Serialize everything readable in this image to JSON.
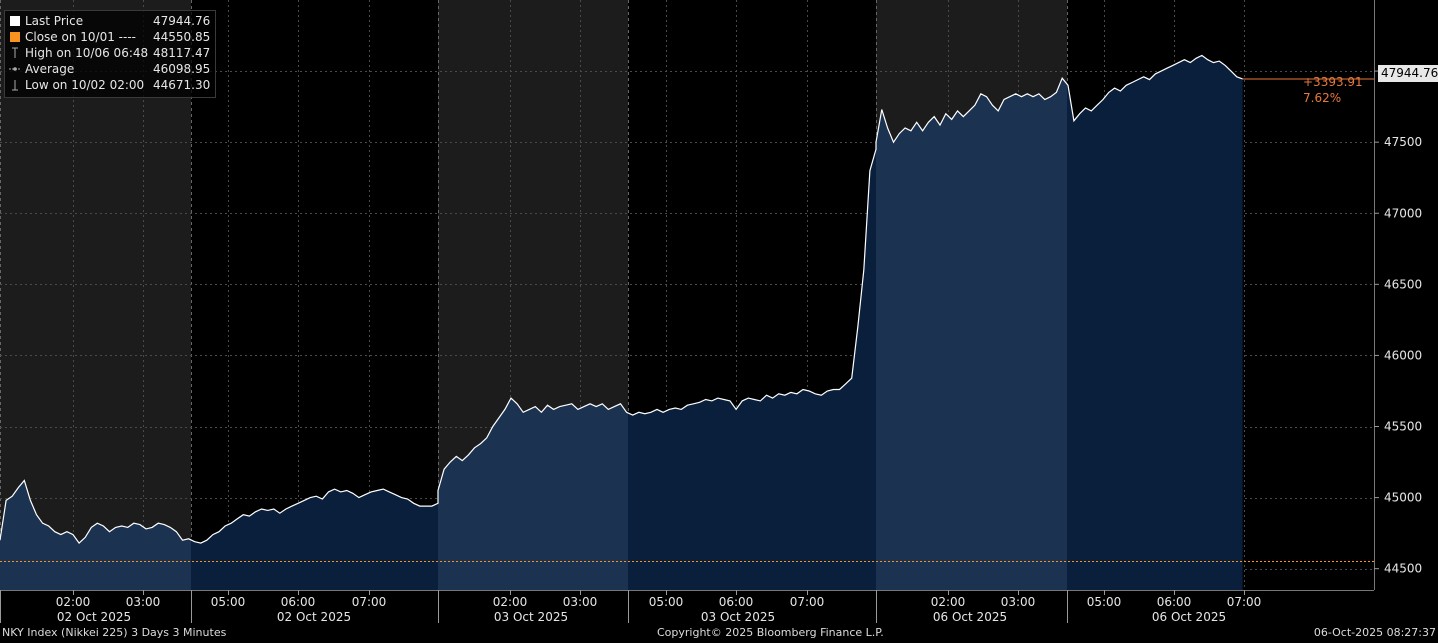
{
  "legend": {
    "rows": [
      {
        "label": "Last Price",
        "value": "47944.76",
        "color": "#ffffff"
      },
      {
        "label": "Close on 10/01 ----",
        "value": "44550.85",
        "color": "#f7931e"
      },
      {
        "label": "High on 10/06 06:48",
        "value": "48117.47"
      },
      {
        "label": "Average",
        "value": "46098.95"
      },
      {
        "label": "Low on 10/02 02:00",
        "value": "44671.30"
      }
    ]
  },
  "last_badge": "47944.76",
  "change": {
    "abs": "+3393.91",
    "pct": "7.62%"
  },
  "footer": {
    "left": "NKY Index (Nikkei 225) 3 Days 3 Minutes",
    "center": "Copyright© 2025 Bloomberg Finance L.P.",
    "right": "06-Oct-2025 08:27:37"
  },
  "colors": {
    "line": "#ffffff",
    "area_off": "#1b3250",
    "area_on": "#0a1f3b",
    "shade": "#1c1c1c",
    "close_line": "#f7931e",
    "grid": "#4a4a4a",
    "accent": "#e8793a"
  },
  "chart_data": {
    "type": "area",
    "title": "",
    "y_ticks": [
      44500,
      45000,
      45500,
      46000,
      46500,
      47000,
      47500,
      48000
    ],
    "ylim": [
      44350,
      48500
    ],
    "reference_line": {
      "label": "Close on 10/01",
      "value": 44550.85
    },
    "days": [
      {
        "name": "02 Oct 2025",
        "time_ticks": [
          "02:00",
          "03:00",
          "05:00",
          "06:00",
          "07:00"
        ],
        "session_labels": [
          "02 Oct 2025",
          "02 Oct 2025"
        ]
      },
      {
        "name": "03 Oct 2025",
        "time_ticks": [
          "02:00",
          "03:00",
          "05:00",
          "06:00",
          "07:00"
        ],
        "session_labels": [
          "03 Oct 2025",
          "03 Oct 2025"
        ]
      },
      {
        "name": "06 Oct 2025",
        "time_ticks": [
          "02:00",
          "03:00",
          "05:00",
          "06:00",
          "07:00"
        ],
        "session_labels": [
          "06 Oct 2025",
          "06 Oct 2025"
        ]
      }
    ],
    "series": [
      {
        "name": "Last Price",
        "points": [
          [
            "02 Oct 00:00",
            44700
          ],
          [
            "02 Oct 00:06",
            44980
          ],
          [
            "02 Oct 00:12",
            45010
          ],
          [
            "02 Oct 00:18",
            45070
          ],
          [
            "02 Oct 00:24",
            45120
          ],
          [
            "02 Oct 00:30",
            44980
          ],
          [
            "02 Oct 00:36",
            44880
          ],
          [
            "02 Oct 00:42",
            44820
          ],
          [
            "02 Oct 00:48",
            44800
          ],
          [
            "02 Oct 00:54",
            44760
          ],
          [
            "02 Oct 01:00",
            44740
          ],
          [
            "02 Oct 01:06",
            44760
          ],
          [
            "02 Oct 01:12",
            44740
          ],
          [
            "02 Oct 01:18",
            44680
          ],
          [
            "02 Oct 01:24",
            44720
          ],
          [
            "02 Oct 01:30",
            44790
          ],
          [
            "02 Oct 01:36",
            44820
          ],
          [
            "02 Oct 01:42",
            44800
          ],
          [
            "02 Oct 01:48",
            44760
          ],
          [
            "02 Oct 01:54",
            44790
          ],
          [
            "02 Oct 02:00",
            44800
          ],
          [
            "02 Oct 02:06",
            44790
          ],
          [
            "02 Oct 02:12",
            44820
          ],
          [
            "02 Oct 02:18",
            44810
          ],
          [
            "02 Oct 02:24",
            44780
          ],
          [
            "02 Oct 02:30",
            44790
          ],
          [
            "02 Oct 02:36",
            44820
          ],
          [
            "02 Oct 02:42",
            44810
          ],
          [
            "02 Oct 02:48",
            44790
          ],
          [
            "02 Oct 02:54",
            44760
          ],
          [
            "02 Oct 03:00",
            44700
          ],
          [
            "02 Oct 03:06",
            44710
          ],
          [
            "02 Oct 03:12",
            44690
          ],
          [
            "02 Oct 03:18",
            44680
          ],
          [
            "02 Oct 03:24",
            44700
          ],
          [
            "02 Oct 03:30",
            44740
          ],
          [
            "02 Oct 03:36",
            44760
          ],
          [
            "02 Oct 03:42",
            44800
          ],
          [
            "02 Oct 03:48",
            44820
          ],
          [
            "02 Oct 03:54",
            44850
          ],
          [
            "02 Oct 04:00",
            44880
          ],
          [
            "02 Oct 04:06",
            44870
          ],
          [
            "02 Oct 04:12",
            44900
          ],
          [
            "02 Oct 04:18",
            44920
          ],
          [
            "02 Oct 04:24",
            44910
          ],
          [
            "02 Oct 04:30",
            44920
          ],
          [
            "02 Oct 04:36",
            44890
          ],
          [
            "02 Oct 04:42",
            44920
          ],
          [
            "02 Oct 04:48",
            44940
          ],
          [
            "02 Oct 04:54",
            44960
          ],
          [
            "02 Oct 05:00",
            44980
          ],
          [
            "02 Oct 05:06",
            45000
          ],
          [
            "02 Oct 05:12",
            45010
          ],
          [
            "02 Oct 05:18",
            44990
          ],
          [
            "02 Oct 05:24",
            45040
          ],
          [
            "02 Oct 05:30",
            45060
          ],
          [
            "02 Oct 05:36",
            45040
          ],
          [
            "02 Oct 05:42",
            45050
          ],
          [
            "02 Oct 05:48",
            45030
          ],
          [
            "02 Oct 05:54",
            45000
          ],
          [
            "02 Oct 06:00",
            45020
          ],
          [
            "02 Oct 06:06",
            45040
          ],
          [
            "02 Oct 06:12",
            45050
          ],
          [
            "02 Oct 06:18",
            45060
          ],
          [
            "02 Oct 06:24",
            45040
          ],
          [
            "02 Oct 06:30",
            45020
          ],
          [
            "02 Oct 06:36",
            45000
          ],
          [
            "02 Oct 06:42",
            44990
          ],
          [
            "02 Oct 06:48",
            44960
          ],
          [
            "02 Oct 06:54",
            44940
          ],
          [
            "02 Oct 07:00",
            44940
          ],
          [
            "02 Oct 07:06",
            44940
          ],
          [
            "02 Oct 07:12",
            44960
          ],
          [
            "03 Oct 00:00",
            45050
          ],
          [
            "03 Oct 00:06",
            45200
          ],
          [
            "03 Oct 00:12",
            45250
          ],
          [
            "03 Oct 00:18",
            45290
          ],
          [
            "03 Oct 00:24",
            45260
          ],
          [
            "03 Oct 00:30",
            45300
          ],
          [
            "03 Oct 00:36",
            45350
          ],
          [
            "03 Oct 00:42",
            45380
          ],
          [
            "03 Oct 00:48",
            45420
          ],
          [
            "03 Oct 00:54",
            45500
          ],
          [
            "03 Oct 01:00",
            45560
          ],
          [
            "03 Oct 01:06",
            45620
          ],
          [
            "03 Oct 01:12",
            45700
          ],
          [
            "03 Oct 01:18",
            45660
          ],
          [
            "03 Oct 01:24",
            45600
          ],
          [
            "03 Oct 01:30",
            45620
          ],
          [
            "03 Oct 01:36",
            45640
          ],
          [
            "03 Oct 01:42",
            45600
          ],
          [
            "03 Oct 01:48",
            45650
          ],
          [
            "03 Oct 01:54",
            45620
          ],
          [
            "03 Oct 02:00",
            45640
          ],
          [
            "03 Oct 02:06",
            45650
          ],
          [
            "03 Oct 02:12",
            45660
          ],
          [
            "03 Oct 02:18",
            45620
          ],
          [
            "03 Oct 02:24",
            45640
          ],
          [
            "03 Oct 02:30",
            45660
          ],
          [
            "03 Oct 02:36",
            45640
          ],
          [
            "03 Oct 02:42",
            45660
          ],
          [
            "03 Oct 02:48",
            45620
          ],
          [
            "03 Oct 02:54",
            45640
          ],
          [
            "03 Oct 03:00",
            45660
          ],
          [
            "03 Oct 03:06",
            45600
          ],
          [
            "03 Oct 03:12",
            45580
          ],
          [
            "03 Oct 03:18",
            45600
          ],
          [
            "03 Oct 03:24",
            45590
          ],
          [
            "03 Oct 03:30",
            45600
          ],
          [
            "03 Oct 03:36",
            45620
          ],
          [
            "03 Oct 03:42",
            45600
          ],
          [
            "03 Oct 03:48",
            45620
          ],
          [
            "03 Oct 03:54",
            45630
          ],
          [
            "03 Oct 04:00",
            45620
          ],
          [
            "03 Oct 04:06",
            45650
          ],
          [
            "03 Oct 04:12",
            45660
          ],
          [
            "03 Oct 04:18",
            45670
          ],
          [
            "03 Oct 04:24",
            45690
          ],
          [
            "03 Oct 04:30",
            45680
          ],
          [
            "03 Oct 04:36",
            45700
          ],
          [
            "03 Oct 04:42",
            45690
          ],
          [
            "03 Oct 04:48",
            45680
          ],
          [
            "03 Oct 04:54",
            45620
          ],
          [
            "03 Oct 05:00",
            45680
          ],
          [
            "03 Oct 05:06",
            45700
          ],
          [
            "03 Oct 05:12",
            45690
          ],
          [
            "03 Oct 05:18",
            45680
          ],
          [
            "03 Oct 05:24",
            45720
          ],
          [
            "03 Oct 05:30",
            45700
          ],
          [
            "03 Oct 05:36",
            45730
          ],
          [
            "03 Oct 05:42",
            45720
          ],
          [
            "03 Oct 05:48",
            45740
          ],
          [
            "03 Oct 05:54",
            45730
          ],
          [
            "03 Oct 06:00",
            45760
          ],
          [
            "03 Oct 06:06",
            45750
          ],
          [
            "03 Oct 06:12",
            45730
          ],
          [
            "03 Oct 06:18",
            45720
          ],
          [
            "03 Oct 06:24",
            45750
          ],
          [
            "03 Oct 06:30",
            45760
          ],
          [
            "03 Oct 06:36",
            45760
          ],
          [
            "03 Oct 06:42",
            45800
          ],
          [
            "03 Oct 06:48",
            45840
          ],
          [
            "03 Oct 06:54",
            46200
          ],
          [
            "03 Oct 07:00",
            46600
          ],
          [
            "03 Oct 07:06",
            47300
          ],
          [
            "03 Oct 07:12",
            47450
          ],
          [
            "06 Oct 00:00",
            47500
          ],
          [
            "06 Oct 00:06",
            47730
          ],
          [
            "06 Oct 00:12",
            47600
          ],
          [
            "06 Oct 00:18",
            47500
          ],
          [
            "06 Oct 00:24",
            47560
          ],
          [
            "06 Oct 00:30",
            47600
          ],
          [
            "06 Oct 00:36",
            47580
          ],
          [
            "06 Oct 00:42",
            47640
          ],
          [
            "06 Oct 00:48",
            47580
          ],
          [
            "06 Oct 00:54",
            47640
          ],
          [
            "06 Oct 01:00",
            47680
          ],
          [
            "06 Oct 01:06",
            47620
          ],
          [
            "06 Oct 01:12",
            47700
          ],
          [
            "06 Oct 01:18",
            47660
          ],
          [
            "06 Oct 01:24",
            47720
          ],
          [
            "06 Oct 01:30",
            47680
          ],
          [
            "06 Oct 01:36",
            47720
          ],
          [
            "06 Oct 01:42",
            47760
          ],
          [
            "06 Oct 01:48",
            47840
          ],
          [
            "06 Oct 01:54",
            47820
          ],
          [
            "06 Oct 02:00",
            47760
          ],
          [
            "06 Oct 02:06",
            47720
          ],
          [
            "06 Oct 02:12",
            47800
          ],
          [
            "06 Oct 02:18",
            47820
          ],
          [
            "06 Oct 02:24",
            47840
          ],
          [
            "06 Oct 02:30",
            47820
          ],
          [
            "06 Oct 02:36",
            47840
          ],
          [
            "06 Oct 02:42",
            47820
          ],
          [
            "06 Oct 02:48",
            47840
          ],
          [
            "06 Oct 02:54",
            47800
          ],
          [
            "06 Oct 03:00",
            47820
          ],
          [
            "06 Oct 03:06",
            47850
          ],
          [
            "06 Oct 03:12",
            47950
          ],
          [
            "06 Oct 03:18",
            47900
          ],
          [
            "06 Oct 03:24",
            47650
          ],
          [
            "06 Oct 03:30",
            47700
          ],
          [
            "06 Oct 03:36",
            47740
          ],
          [
            "06 Oct 03:42",
            47720
          ],
          [
            "06 Oct 03:48",
            47760
          ],
          [
            "06 Oct 03:54",
            47800
          ],
          [
            "06 Oct 04:00",
            47850
          ],
          [
            "06 Oct 04:06",
            47880
          ],
          [
            "06 Oct 04:12",
            47860
          ],
          [
            "06 Oct 04:18",
            47900
          ],
          [
            "06 Oct 04:24",
            47920
          ],
          [
            "06 Oct 04:30",
            47940
          ],
          [
            "06 Oct 04:36",
            47960
          ],
          [
            "06 Oct 04:42",
            47940
          ],
          [
            "06 Oct 04:48",
            47980
          ],
          [
            "06 Oct 04:54",
            48000
          ],
          [
            "06 Oct 05:00",
            48020
          ],
          [
            "06 Oct 05:06",
            48040
          ],
          [
            "06 Oct 05:12",
            48060
          ],
          [
            "06 Oct 05:18",
            48080
          ],
          [
            "06 Oct 05:24",
            48060
          ],
          [
            "06 Oct 05:30",
            48090
          ],
          [
            "06 Oct 05:36",
            48110
          ],
          [
            "06 Oct 05:42",
            48080
          ],
          [
            "06 Oct 05:48",
            48060
          ],
          [
            "06 Oct 05:54",
            48070
          ],
          [
            "06 Oct 06:00",
            48040
          ],
          [
            "06 Oct 06:06",
            48000
          ],
          [
            "06 Oct 06:12",
            47960
          ],
          [
            "06 Oct 06:18",
            47944.76
          ]
        ]
      }
    ]
  }
}
